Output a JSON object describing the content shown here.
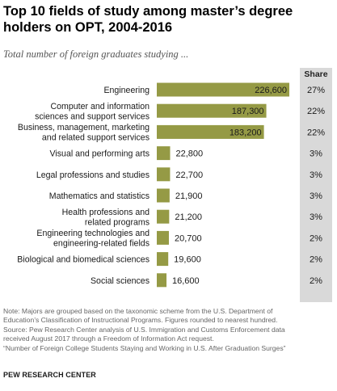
{
  "title": "Top 10 fields of study among master’s degree holders on OPT, 2004-2016",
  "subtitle": "Total number of foreign graduates studying ...",
  "share_header": "Share",
  "colors": {
    "bar": "#959a45",
    "share_panel": "#d9d9d9"
  },
  "chart_data": {
    "type": "bar",
    "orientation": "horizontal",
    "categories": [
      [
        "Engineering"
      ],
      [
        "Computer and information",
        "sciences and support services"
      ],
      [
        "Business, management, marketing",
        "and related support services"
      ],
      [
        "Visual and performing arts"
      ],
      [
        "Legal professions and studies"
      ],
      [
        "Mathematics and statistics"
      ],
      [
        "Health professions and",
        "related programs"
      ],
      [
        "Engineering technologies and",
        "engineering-related fields"
      ],
      [
        "Biological and biomedical sciences"
      ],
      [
        "Social sciences"
      ]
    ],
    "values": [
      226600,
      187300,
      183200,
      22800,
      22700,
      21900,
      21200,
      20700,
      19600,
      16600
    ],
    "value_labels": [
      "226,600",
      "187,300",
      "183,200",
      "22,800",
      "22,700",
      "21,900",
      "21,200",
      "20,700",
      "19,600",
      "16,600"
    ],
    "shares": [
      "27%",
      "22%",
      "22%",
      "3%",
      "3%",
      "3%",
      "3%",
      "2%",
      "2%",
      "2%"
    ],
    "xlim": [
      0,
      226600
    ]
  },
  "notes": [
    "Note: Majors are grouped based on the taxonomic scheme from the U.S. Department of",
    "Education’s Classification of Instructional Programs. Figures rounded to nearest hundred.",
    "Source: Pew Research Center analysis of U.S. Immigration and Customs Enforcement data",
    "received August 2017 through a Freedom of Information Act request.",
    "“Number of Foreign College Students Staying and Working in U.S. After Graduation Surges”"
  ],
  "source_org": "PEW RESEARCH CENTER"
}
